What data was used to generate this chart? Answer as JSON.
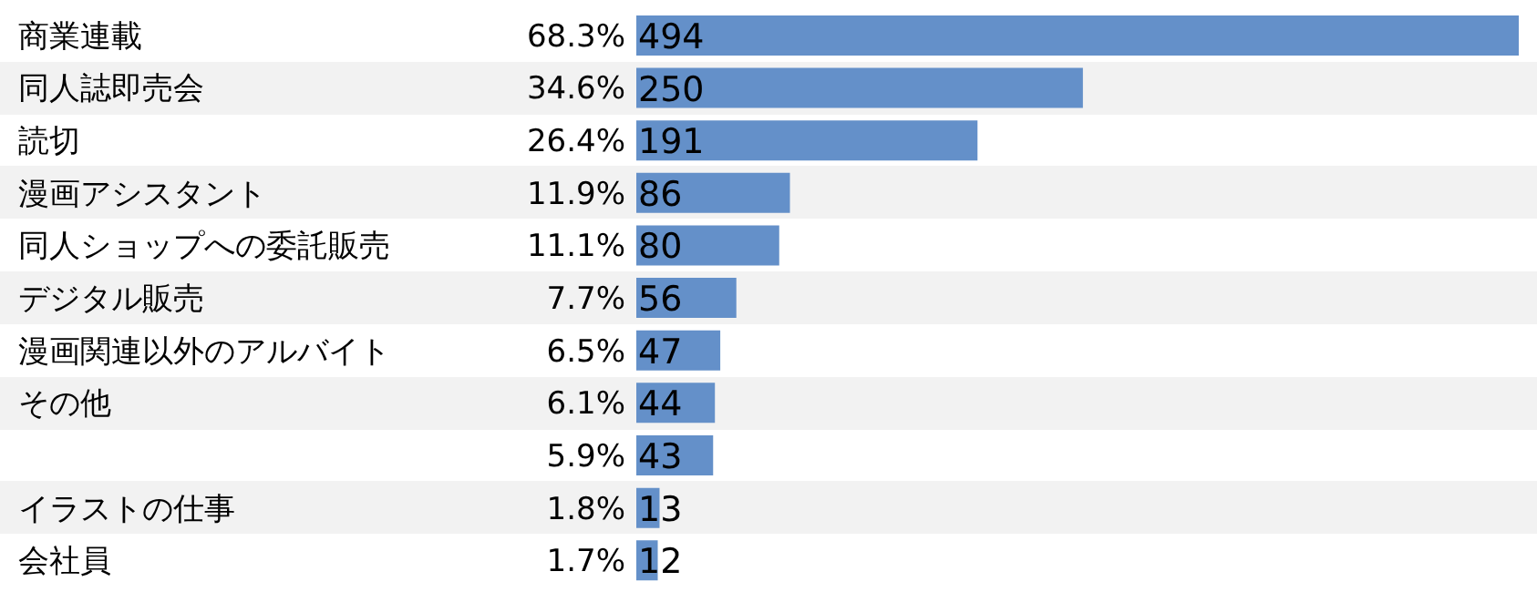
{
  "chart_data": {
    "type": "bar",
    "orientation": "horizontal",
    "categories": [
      "商業連載",
      "同人誌即売会",
      "読切",
      "漫画アシスタント",
      "同人ショップへの委託販売",
      "デジタル販売",
      "漫画関連以外のアルバイト",
      "その他",
      null,
      "イラストの仕事",
      "会社員"
    ],
    "values": [
      494,
      250,
      191,
      86,
      80,
      56,
      47,
      44,
      43,
      13,
      12
    ],
    "annotations": [
      "68.3%",
      "34.6%",
      "26.4%",
      "11.9%",
      "11.1%",
      "7.7%",
      "6.5%",
      "6.1%",
      "5.9%",
      "1.8%",
      "1.7%"
    ],
    "color": "#6490c9",
    "data_labels": true
  }
}
